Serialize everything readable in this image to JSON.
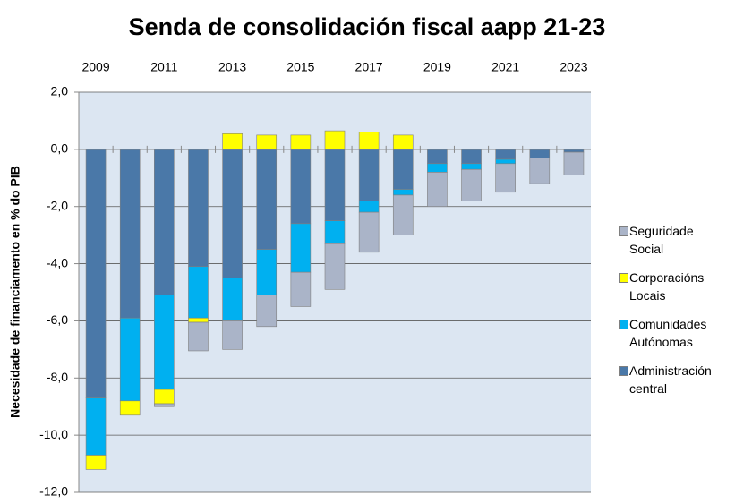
{
  "chart_data": {
    "type": "stacked_bar",
    "title": "Senda de consolidación fiscal aapp 21-23",
    "y_label": "Necesidade de financiamento en % do PIB",
    "categories": [
      "2009",
      null,
      "2011",
      null,
      "2013",
      null,
      "2015",
      null,
      "2017",
      null,
      "2019",
      null,
      "2021",
      null,
      "2023"
    ],
    "series": [
      {
        "name": "Administración central",
        "color": "#4a78a8",
        "values": [
          -8.7,
          -5.9,
          -5.1,
          -4.1,
          -4.5,
          -3.5,
          -2.6,
          -2.5,
          -1.8,
          -1.4,
          -0.5,
          -0.5,
          -0.35,
          -0.3,
          -0.1
        ]
      },
      {
        "name": "Comunidades Autónomas",
        "color": "#00b0f0",
        "values": [
          -2.0,
          -2.9,
          -3.3,
          -1.8,
          -1.5,
          -1.6,
          -1.7,
          -0.8,
          -0.4,
          -0.2,
          -0.3,
          -0.2,
          -0.15,
          0,
          0
        ]
      },
      {
        "name": "Corporacións Locais",
        "color": "#ffff00",
        "values": [
          -0.5,
          -0.5,
          -0.5,
          -0.15,
          0.55,
          0.5,
          0.5,
          0.65,
          0.6,
          0.5,
          0,
          0,
          0,
          0,
          0
        ]
      },
      {
        "name": "Seguridade Social",
        "color": "#aab4c8",
        "values": [
          0,
          0,
          -0.1,
          -1.0,
          -1.0,
          -1.1,
          -1.2,
          -1.6,
          -1.4,
          -1.4,
          -1.2,
          -1.1,
          -1.0,
          -0.9,
          -0.8
        ]
      }
    ],
    "ylim": [
      -12,
      2
    ],
    "yticks": [
      {
        "value": -12,
        "label": "-12,0"
      },
      {
        "value": -10,
        "label": "-10,0"
      },
      {
        "value": -8,
        "label": "-8,0"
      },
      {
        "value": -6,
        "label": "-6,0"
      },
      {
        "value": -4,
        "label": "-4,0"
      },
      {
        "value": -2,
        "label": "-2,0"
      },
      {
        "value": 0,
        "label": "0,0"
      },
      {
        "value": 2,
        "label": "2,0"
      }
    ],
    "grid": true
  }
}
